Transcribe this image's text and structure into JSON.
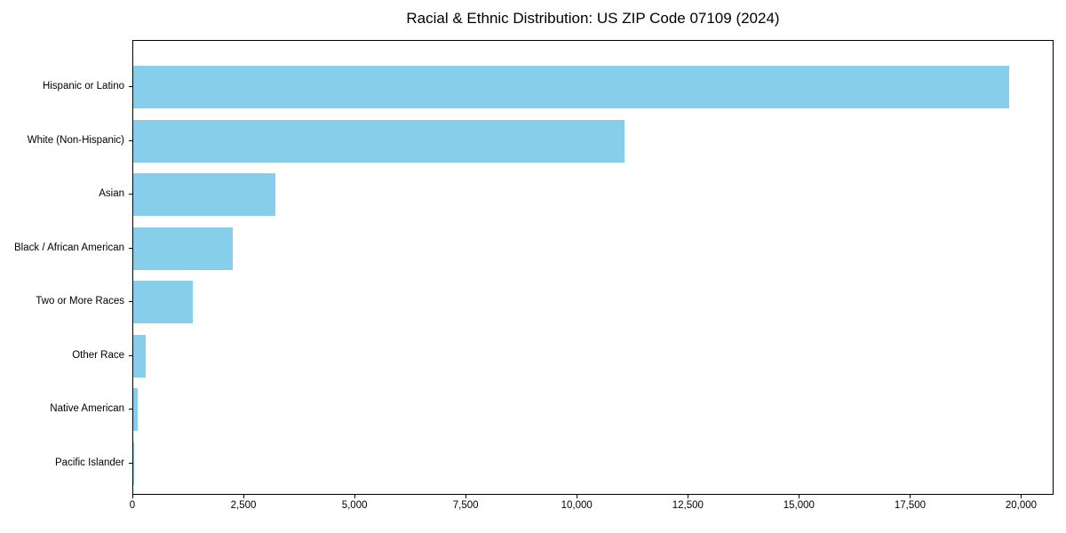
{
  "chart_data": {
    "type": "bar",
    "orientation": "horizontal",
    "title": "Racial & Ethnic Distribution: US ZIP Code 07109 (2024)",
    "categories": [
      "Hispanic or Latino",
      "White (Non-Hispanic)",
      "Asian",
      "Black / African American",
      "Two or More Races",
      "Other Race",
      "Native American",
      "Pacific Islander"
    ],
    "values": [
      19740,
      11070,
      3200,
      2240,
      1340,
      290,
      95,
      10
    ],
    "xlabel": "",
    "ylabel": "",
    "xlim": [
      0,
      20730
    ],
    "x_ticks": [
      0,
      2500,
      5000,
      7500,
      10000,
      12500,
      15000,
      17500,
      20000
    ],
    "x_tick_labels": [
      "0",
      "2,500",
      "5,000",
      "7,500",
      "10,000",
      "12,500",
      "15,000",
      "17,500",
      "20,000"
    ],
    "bar_color": "#87CEEB",
    "text_color": "#000000",
    "grid": false,
    "legend": null
  }
}
